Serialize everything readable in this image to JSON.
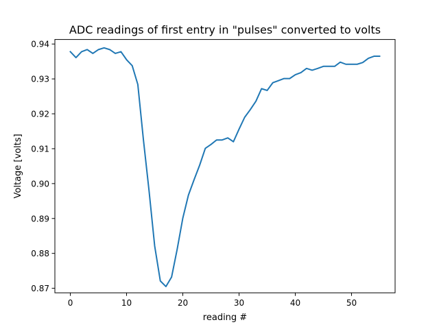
{
  "chart_data": {
    "type": "line",
    "title": "ADC readings of first entry in \"pulses\" converted to volts",
    "xlabel": "reading #",
    "ylabel": "Voltage [volts]",
    "xlim": [
      -2.75,
      57.75
    ],
    "ylim": [
      0.8687,
      0.9413
    ],
    "x_ticks": [
      0,
      10,
      20,
      30,
      40,
      50
    ],
    "x_tick_labels": [
      "0",
      "10",
      "20",
      "30",
      "40",
      "50"
    ],
    "y_ticks": [
      0.87,
      0.88,
      0.89,
      0.9,
      0.91,
      0.92,
      0.93,
      0.94
    ],
    "y_tick_labels": [
      "0.87",
      "0.88",
      "0.89",
      "0.90",
      "0.91",
      "0.92",
      "0.93",
      "0.94"
    ],
    "grid": false,
    "legend": "none",
    "colors": {
      "series": "#1f77b4"
    },
    "series": [
      {
        "x": [
          0,
          1,
          2,
          3,
          4,
          5,
          6,
          7,
          8,
          9,
          10,
          11,
          12,
          13,
          14,
          15,
          16,
          17,
          18,
          19,
          20,
          21,
          22,
          23,
          24,
          25,
          26,
          27,
          28,
          29,
          30,
          31,
          32,
          33,
          34,
          35,
          36,
          37,
          38,
          39,
          40,
          41,
          42,
          43,
          44,
          45,
          46,
          47,
          48,
          49,
          50,
          51,
          52,
          53,
          54,
          55
        ],
        "values": [
          0.9378,
          0.9361,
          0.9378,
          0.9384,
          0.9373,
          0.9384,
          0.9389,
          0.9384,
          0.9373,
          0.9378,
          0.9355,
          0.9338,
          0.9284,
          0.9125,
          0.8979,
          0.8821,
          0.8721,
          0.8705,
          0.8732,
          0.8812,
          0.8901,
          0.8967,
          0.9011,
          0.9053,
          0.9101,
          0.9112,
          0.9125,
          0.9125,
          0.9131,
          0.912,
          0.9156,
          0.919,
          0.9212,
          0.9236,
          0.9272,
          0.9267,
          0.9289,
          0.9295,
          0.9301,
          0.9301,
          0.9312,
          0.9318,
          0.933,
          0.9325,
          0.933,
          0.9336,
          0.9336,
          0.9336,
          0.9348,
          0.9342,
          0.9342,
          0.9342,
          0.9347,
          0.9359,
          0.9365,
          0.9365
        ]
      }
    ]
  }
}
